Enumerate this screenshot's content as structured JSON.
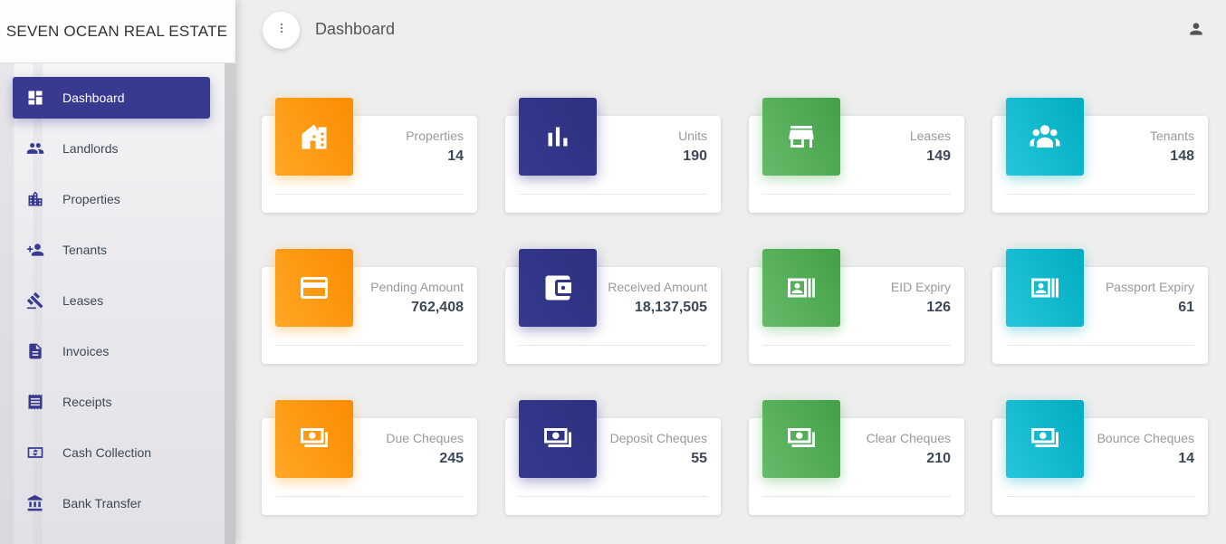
{
  "brand": "SEVEN OCEAN REAL ESTATE",
  "header": {
    "title": "Dashboard"
  },
  "sidebar": {
    "items": [
      {
        "label": "Dashboard",
        "icon": "dashboard-icon",
        "active": true
      },
      {
        "label": "Landlords",
        "icon": "people-icon"
      },
      {
        "label": "Properties",
        "icon": "building-icon"
      },
      {
        "label": "Tenants",
        "icon": "person-add-icon"
      },
      {
        "label": "Leases",
        "icon": "gavel-icon"
      },
      {
        "label": "Invoices",
        "icon": "document-icon"
      },
      {
        "label": "Receipts",
        "icon": "receipt-icon"
      },
      {
        "label": "Cash Collection",
        "icon": "cash-icon"
      },
      {
        "label": "Bank Transfer",
        "icon": "bank-icon"
      }
    ]
  },
  "cards": [
    {
      "label": "Properties",
      "value": "14",
      "color": "#fb8c00",
      "icon": "house-icon"
    },
    {
      "label": "Units",
      "value": "190",
      "color": "#2e3080",
      "icon": "bar-chart-icon"
    },
    {
      "label": "Leases",
      "value": "149",
      "color": "#43a047",
      "icon": "store-icon"
    },
    {
      "label": "Tenants",
      "value": "148",
      "color": "#00acc1",
      "icon": "group-icon"
    },
    {
      "label": "Pending Amount",
      "value": "762,408",
      "color": "#fb8c00",
      "icon": "credit-card-icon"
    },
    {
      "label": "Received Amount",
      "value": "18,137,505",
      "color": "#2e3080",
      "icon": "wallet-icon"
    },
    {
      "label": "EID Expiry",
      "value": "126",
      "color": "#43a047",
      "icon": "id-card-icon"
    },
    {
      "label": "Passport Expiry",
      "value": "61",
      "color": "#00acc1",
      "icon": "id-card-icon"
    },
    {
      "label": "Due Cheques",
      "value": "245",
      "color": "#fb8c00",
      "icon": "money-icon"
    },
    {
      "label": "Deposit Cheques",
      "value": "55",
      "color": "#2e3080",
      "icon": "money-icon"
    },
    {
      "label": "Clear Cheques",
      "value": "210",
      "color": "#43a047",
      "icon": "money-icon"
    },
    {
      "label": "Bounce Cheques",
      "value": "14",
      "color": "#00acc1",
      "icon": "money-icon"
    }
  ]
}
